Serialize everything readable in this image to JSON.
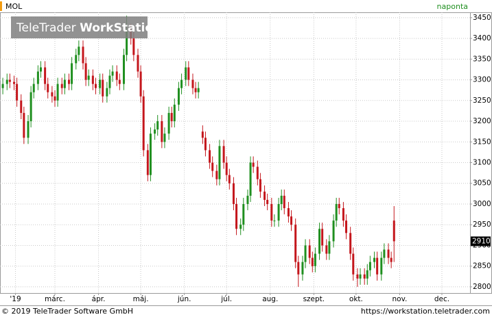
{
  "chart_data": {
    "type": "candlestick",
    "title": "MOL",
    "interval": "naponta",
    "up_color": "#1f8f1f",
    "down_color": "#c4161c",
    "grid": true,
    "xlim": [
      21,
      355
    ],
    "ylim": [
      2785,
      3463
    ],
    "xticks": [
      {
        "value": 32,
        "label": "'19"
      },
      {
        "value": 60,
        "label": "márc."
      },
      {
        "value": 91,
        "label": "ápr."
      },
      {
        "value": 121,
        "label": "máj."
      },
      {
        "value": 152,
        "label": "jún."
      },
      {
        "value": 182,
        "label": "júl."
      },
      {
        "value": 213,
        "label": "aug."
      },
      {
        "value": 244,
        "label": "szept."
      },
      {
        "value": 274,
        "label": "okt."
      },
      {
        "value": 305,
        "label": "nov."
      },
      {
        "value": 335,
        "label": "dec."
      }
    ],
    "yticks": [
      2800,
      2850,
      2900,
      2950,
      3000,
      3050,
      3100,
      3150,
      3200,
      3250,
      3300,
      3350,
      3400,
      3450
    ],
    "x": [
      23,
      26,
      28,
      31,
      33,
      36,
      38,
      41,
      43,
      45,
      48,
      50,
      53,
      55,
      58,
      60,
      62,
      65,
      67,
      70,
      72,
      75,
      77,
      80,
      82,
      84,
      87,
      89,
      92,
      94,
      97,
      99,
      101,
      104,
      106,
      109,
      111,
      114,
      116,
      119,
      121,
      123,
      126,
      128,
      131,
      133,
      136,
      138,
      141,
      143,
      145,
      148,
      150,
      153,
      155,
      158,
      160,
      162,
      165,
      167,
      170,
      172,
      175,
      177,
      180,
      182,
      184,
      187,
      189,
      192,
      194,
      197,
      199,
      201,
      204,
      206,
      209,
      211,
      214,
      216,
      219,
      221,
      223,
      226,
      228,
      231,
      233,
      236,
      238,
      241,
      243,
      245,
      248,
      250,
      253,
      255,
      258,
      260,
      262,
      265,
      267,
      270,
      272,
      275,
      277,
      280,
      282,
      284,
      287,
      289,
      292,
      294,
      297,
      299,
      301
    ],
    "open": [
      3280,
      3290,
      3300,
      3295,
      3290,
      3250,
      3220,
      3160,
      3200,
      3270,
      3290,
      3320,
      3330,
      3290,
      3270,
      3260,
      3250,
      3290,
      3280,
      3300,
      3290,
      3340,
      3360,
      3380,
      3340,
      3300,
      3310,
      3290,
      3280,
      3300,
      3260,
      3280,
      3310,
      3320,
      3300,
      3290,
      3360,
      3420,
      3400,
      3360,
      3320,
      3260,
      3130,
      3070,
      3170,
      3180,
      3200,
      3150,
      3170,
      3220,
      3200,
      3240,
      3280,
      3300,
      3330,
      3300,
      3280,
      3270,
      3175,
      3160,
      3130,
      3100,
      3080,
      3060,
      3140,
      3100,
      3070,
      3050,
      3000,
      2940,
      2950,
      3000,
      3020,
      3100,
      3090,
      3060,
      3030,
      3010,
      3000,
      2960,
      2960,
      3000,
      3020,
      2990,
      2970,
      2950,
      2860,
      2830,
      2860,
      2900,
      2870,
      2850,
      2880,
      2940,
      2900,
      2880,
      2910,
      2960,
      3000,
      2990,
      2960,
      2930,
      2880,
      2830,
      2820,
      2830,
      2820,
      2840,
      2860,
      2870,
      2830,
      2870,
      2890,
      2870,
      2960
    ],
    "high": [
      3305,
      3315,
      3315,
      3310,
      3305,
      3265,
      3235,
      3215,
      3285,
      3305,
      3335,
      3345,
      3345,
      3305,
      3285,
      3275,
      3305,
      3305,
      3315,
      3315,
      3355,
      3375,
      3395,
      3395,
      3355,
      3325,
      3325,
      3305,
      3315,
      3315,
      3295,
      3325,
      3335,
      3335,
      3315,
      3375,
      3455,
      3435,
      3415,
      3375,
      3335,
      3275,
      3145,
      3185,
      3195,
      3215,
      3215,
      3185,
      3235,
      3235,
      3255,
      3295,
      3315,
      3345,
      3345,
      3315,
      3295,
      3295,
      3190,
      3175,
      3145,
      3115,
      3095,
      3155,
      3155,
      3115,
      3085,
      3065,
      3015,
      2965,
      3015,
      3035,
      3115,
      3115,
      3105,
      3075,
      3045,
      3025,
      3015,
      2975,
      3015,
      3035,
      3035,
      3005,
      2985,
      2965,
      2875,
      2875,
      2915,
      2915,
      2885,
      2895,
      2955,
      2955,
      2915,
      2925,
      2975,
      3015,
      3015,
      3005,
      2975,
      2945,
      2895,
      2845,
      2845,
      2845,
      2855,
      2875,
      2885,
      2885,
      2885,
      2905,
      2905,
      2885,
      2995
    ],
    "low": [
      3265,
      3275,
      3280,
      3275,
      3235,
      3205,
      3145,
      3145,
      3185,
      3255,
      3275,
      3305,
      3275,
      3255,
      3245,
      3235,
      3235,
      3265,
      3265,
      3275,
      3275,
      3325,
      3345,
      3325,
      3285,
      3285,
      3275,
      3265,
      3265,
      3245,
      3245,
      3265,
      3295,
      3285,
      3275,
      3275,
      3345,
      3385,
      3345,
      3305,
      3245,
      3115,
      3055,
      3055,
      3155,
      3165,
      3135,
      3135,
      3155,
      3185,
      3185,
      3225,
      3265,
      3285,
      3285,
      3265,
      3255,
      3255,
      3145,
      3115,
      3085,
      3065,
      3045,
      3045,
      3085,
      3055,
      3035,
      2985,
      2925,
      2925,
      2935,
      2985,
      3005,
      3075,
      3045,
      3015,
      2995,
      2985,
      2945,
      2945,
      2945,
      2985,
      2975,
      2955,
      2935,
      2845,
      2800,
      2815,
      2845,
      2855,
      2835,
      2835,
      2865,
      2885,
      2865,
      2865,
      2895,
      2945,
      2975,
      2945,
      2915,
      2865,
      2815,
      2800,
      2805,
      2805,
      2805,
      2825,
      2845,
      2815,
      2815,
      2855,
      2855,
      2845,
      2860
    ],
    "close": [
      3290,
      3300,
      3295,
      3290,
      3250,
      3220,
      3160,
      3200,
      3270,
      3290,
      3320,
      3330,
      3290,
      3270,
      3260,
      3250,
      3290,
      3280,
      3300,
      3290,
      3340,
      3360,
      3380,
      3340,
      3300,
      3310,
      3290,
      3280,
      3300,
      3260,
      3280,
      3310,
      3320,
      3300,
      3290,
      3360,
      3420,
      3400,
      3360,
      3320,
      3260,
      3130,
      3070,
      3170,
      3180,
      3200,
      3150,
      3170,
      3220,
      3200,
      3240,
      3280,
      3300,
      3330,
      3300,
      3280,
      3270,
      3280,
      3160,
      3130,
      3100,
      3080,
      3060,
      3140,
      3100,
      3070,
      3050,
      3000,
      2940,
      2950,
      3000,
      3020,
      3100,
      3090,
      3060,
      3030,
      3010,
      3000,
      2960,
      2960,
      3000,
      3020,
      2990,
      2970,
      2950,
      2860,
      2830,
      2860,
      2900,
      2870,
      2850,
      2880,
      2940,
      2900,
      2880,
      2910,
      2960,
      3000,
      2990,
      2960,
      2930,
      2880,
      2830,
      2820,
      2830,
      2820,
      2840,
      2860,
      2870,
      2830,
      2870,
      2890,
      2870,
      2860,
      2910
    ]
  },
  "watermark": {
    "brand": "TeleTrader",
    "product": "WorkStation"
  },
  "footer": {
    "copyright": "© 2019 TeleTrader Software GmbH",
    "url": "https://workstation.teletrader.com"
  }
}
